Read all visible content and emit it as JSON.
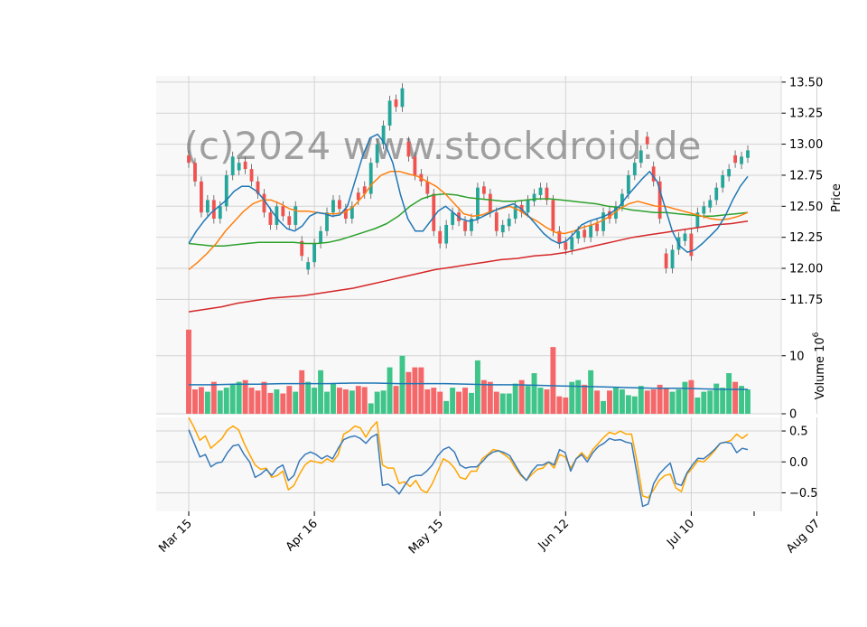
{
  "watermark": "(c)2024 www.stockdroid.de",
  "colors": {
    "panel_bg": "#f8f8f8",
    "grid": "#d3d3d3",
    "up": "#26a69a",
    "up_vol": "#3fc58a",
    "down": "#ef5350",
    "down_vol": "#f5686a",
    "ma_fast": "#1f77b4",
    "ma_mid": "#ff7f0e",
    "ma_slow": "#2ca02c",
    "ma_long": "#d62728",
    "osc_blue": "#3a7ab8",
    "osc_orange": "#ffa500"
  },
  "chart_data": [
    {
      "type": "candlestick",
      "panel": "price",
      "ylabel": "Price",
      "ylim": [
        11.6,
        13.55
      ],
      "yticks": [
        11.75,
        12.0,
        12.25,
        12.5,
        12.75,
        13.0,
        13.25,
        13.5
      ],
      "xticks": [
        {
          "label": "Mar 15",
          "index": 0
        },
        {
          "label": "Apr 16",
          "index": 20
        },
        {
          "label": "May 15",
          "index": 40
        },
        {
          "label": "Jun 12",
          "index": 60
        },
        {
          "label": "Jul 10",
          "index": 80
        },
        {
          "label": "Aug 07",
          "index": 100
        }
      ],
      "close": [
        12.85,
        12.7,
        12.45,
        12.55,
        12.4,
        12.5,
        12.75,
        12.9,
        12.85,
        12.8,
        12.7,
        12.6,
        12.45,
        12.35,
        12.5,
        12.42,
        12.35,
        12.5,
        12.1,
        12.05,
        12.2,
        12.3,
        12.45,
        12.55,
        12.48,
        12.4,
        12.5,
        12.55,
        12.6,
        12.85,
        13.0,
        13.15,
        13.35,
        13.3,
        13.45,
        12.9,
        12.75,
        12.7,
        12.6,
        12.3,
        12.2,
        12.35,
        12.45,
        12.38,
        12.3,
        12.4,
        12.65,
        12.6,
        12.45,
        12.3,
        12.35,
        12.4,
        12.5,
        12.45,
        12.55,
        12.6,
        12.65,
        12.55,
        12.3,
        12.2,
        12.15,
        12.25,
        12.3,
        12.25,
        12.35,
        12.3,
        12.45,
        12.4,
        12.5,
        12.6,
        12.75,
        12.85,
        12.95,
        13.0,
        12.7,
        12.4,
        12.0,
        12.15,
        12.25,
        12.28,
        12.1,
        12.45,
        12.5,
        12.55,
        12.65,
        12.75,
        12.8,
        12.85,
        12.9,
        12.95
      ],
      "volume_m": [
        14.5,
        4.2,
        4.6,
        3.8,
        5.5,
        4.0,
        4.5,
        5.0,
        5.5,
        5.8,
        4.5,
        4.0,
        5.5,
        3.6,
        4.2,
        3.5,
        4.8,
        3.8,
        7.5,
        5.5,
        4.5,
        7.5,
        3.8,
        5.2,
        4.5,
        4.2,
        4.0,
        4.8,
        4.6,
        1.8,
        3.8,
        4.0,
        8.0,
        4.8,
        10.0,
        7.2,
        8.0,
        8.0,
        4.2,
        4.5,
        3.8,
        2.2,
        4.5,
        3.8,
        4.5,
        3.6,
        9.2,
        5.8,
        5.5,
        3.8,
        3.5,
        3.5,
        5.2,
        5.8,
        4.8,
        7.0,
        4.5,
        4.2,
        11.5,
        3.0,
        2.8,
        5.5,
        5.8,
        5.0,
        7.5,
        4.0,
        2.2,
        4.0,
        4.5,
        4.2,
        3.2,
        3.0,
        4.8,
        4.0,
        4.2,
        5.0,
        4.5,
        3.8,
        4.2,
        5.5,
        5.8,
        2.8,
        3.8,
        4.0,
        5.2,
        4.5,
        7.0,
        5.5,
        4.8,
        4.2
      ],
      "direction": [
        -1,
        -1,
        -1,
        1,
        -1,
        1,
        1,
        1,
        1,
        -1,
        -1,
        -1,
        -1,
        -1,
        1,
        -1,
        -1,
        1,
        -1,
        1,
        1,
        1,
        1,
        1,
        -1,
        -1,
        1,
        -1,
        -1,
        1,
        1,
        1,
        1,
        -1,
        1,
        -1,
        -1,
        -1,
        -1,
        -1,
        -1,
        1,
        1,
        -1,
        -1,
        1,
        1,
        -1,
        -1,
        -1,
        1,
        1,
        1,
        -1,
        1,
        1,
        1,
        -1,
        -1,
        -1,
        -1,
        1,
        1,
        -1,
        1,
        -1,
        1,
        -1,
        1,
        1,
        1,
        1,
        1,
        -1,
        -1,
        -1,
        -1,
        1,
        1,
        1,
        -1,
        1,
        1,
        1,
        1,
        1,
        1,
        -1,
        1,
        1
      ],
      "sma_fast": [
        12.2,
        12.3,
        12.38,
        12.45,
        12.5,
        12.55,
        12.62,
        12.66,
        12.66,
        12.62,
        12.55,
        12.46,
        12.38,
        12.32,
        12.3,
        12.34,
        12.42,
        12.45,
        12.44,
        12.42,
        12.43,
        12.5,
        12.7,
        12.9,
        13.05,
        13.08,
        13.0,
        12.85,
        12.6,
        12.4,
        12.3,
        12.3,
        12.38,
        12.46,
        12.5,
        12.45,
        12.4,
        12.38,
        12.39,
        12.42,
        12.45,
        12.48,
        12.5,
        12.52,
        12.48,
        12.42,
        12.35,
        12.28,
        12.23,
        12.2,
        12.22,
        12.28,
        12.35,
        12.38,
        12.4,
        12.42,
        12.45,
        12.5,
        12.58,
        12.65,
        12.72,
        12.78,
        12.7,
        12.5,
        12.3,
        12.18,
        12.13,
        12.15,
        12.2,
        12.26,
        12.32,
        12.42,
        12.55,
        12.66,
        12.74
      ],
      "sma_mid": [
        11.99,
        12.05,
        12.12,
        12.2,
        12.3,
        12.38,
        12.46,
        12.52,
        12.55,
        12.55,
        12.52,
        12.48,
        12.46,
        12.46,
        12.45,
        12.44,
        12.44,
        12.45,
        12.5,
        12.58,
        12.68,
        12.75,
        12.78,
        12.78,
        12.76,
        12.74,
        12.7,
        12.66,
        12.6,
        12.52,
        12.44,
        12.42,
        12.43,
        12.46,
        12.48,
        12.5,
        12.47,
        12.42,
        12.38,
        12.33,
        12.29,
        12.28,
        12.3,
        12.33,
        12.35,
        12.38,
        12.42,
        12.48,
        12.52,
        12.54,
        12.52,
        12.5,
        12.5,
        12.48,
        12.46,
        12.44,
        12.42,
        12.4,
        12.39,
        12.4,
        12.42,
        12.45
      ],
      "sma_slow": [
        12.2,
        12.19,
        12.18,
        12.18,
        12.19,
        12.2,
        12.21,
        12.21,
        12.21,
        12.21,
        12.2,
        12.2,
        12.21,
        12.23,
        12.26,
        12.29,
        12.32,
        12.36,
        12.42,
        12.5,
        12.56,
        12.59,
        12.6,
        12.59,
        12.57,
        12.56,
        12.55,
        12.54,
        12.54,
        12.55,
        12.56,
        12.56,
        12.55,
        12.54,
        12.53,
        12.52,
        12.5,
        12.49,
        12.47,
        12.46,
        12.45,
        12.45,
        12.44,
        12.43,
        12.42,
        12.42,
        12.43,
        12.44,
        12.45
      ],
      "sma_long": [
        11.65,
        11.67,
        11.69,
        11.72,
        11.74,
        11.76,
        11.77,
        11.78,
        11.8,
        11.82,
        11.84,
        11.87,
        11.9,
        11.93,
        11.96,
        11.99,
        12.01,
        12.03,
        12.05,
        12.07,
        12.08,
        12.1,
        12.11,
        12.13,
        12.16,
        12.19,
        12.22,
        12.25,
        12.27,
        12.29,
        12.31,
        12.33,
        12.35,
        12.36,
        12.38
      ]
    },
    {
      "type": "bar",
      "panel": "volume",
      "ylabel": "Volume  10^6",
      "ylim": [
        0,
        16.5
      ],
      "yticks": [
        0,
        10
      ],
      "avg_volume_m": [
        5.0,
        5.0,
        5.1,
        5.1,
        5.2,
        5.2,
        5.2,
        5.3,
        5.3,
        5.2,
        5.2,
        5.2,
        5.1,
        5.0,
        5.0,
        4.9,
        4.8,
        4.7,
        4.6,
        4.5,
        4.4,
        4.4,
        4.3,
        4.2,
        4.2
      ]
    },
    {
      "type": "line",
      "panel": "oscillator",
      "ylim": [
        -0.8,
        0.72
      ],
      "yticks": [
        -0.5,
        0.0,
        0.5
      ],
      "series": [
        {
          "values": [
            0.52,
            0.3,
            0.08,
            0.12,
            -0.08,
            -0.02,
            0.0,
            0.15,
            0.26,
            0.28,
            0.12,
            0.0,
            -0.25,
            -0.2,
            -0.12,
            -0.22,
            -0.1,
            -0.05,
            -0.3,
            -0.22,
            0.02,
            0.12,
            0.16,
            0.12,
            0.05,
            0.1,
            0.05,
            0.22,
            0.36,
            0.4,
            0.42,
            0.38,
            0.3,
            0.4,
            0.45,
            -0.38,
            -0.36,
            -0.42,
            -0.52,
            -0.38,
            -0.25,
            -0.22,
            -0.22,
            -0.15,
            -0.05,
            0.1,
            0.2,
            0.24,
            0.16,
            -0.05,
            -0.1,
            -0.08,
            -0.08,
            0.0,
            0.1,
            0.16,
            0.18,
            0.15,
            0.1,
            -0.05,
            -0.2,
            -0.3,
            -0.15,
            -0.05,
            -0.05,
            0.0,
            -0.05,
            0.2,
            0.15,
            -0.15,
            0.05,
            0.12,
            0.0,
            0.15,
            0.25,
            0.3,
            0.38,
            0.35,
            0.36,
            0.32,
            0.3,
            -0.2,
            -0.72,
            -0.68,
            -0.35,
            -0.2,
            -0.1,
            -0.02,
            -0.35,
            -0.38,
            -0.18,
            -0.05,
            0.06,
            0.05,
            0.12,
            0.2,
            0.3,
            0.32,
            0.3,
            0.15,
            0.22,
            0.2
          ]
        },
        {
          "values": [
            0.72,
            0.55,
            0.35,
            0.42,
            0.22,
            0.3,
            0.38,
            0.52,
            0.58,
            0.52,
            0.3,
            0.12,
            -0.05,
            -0.12,
            -0.1,
            -0.25,
            -0.22,
            -0.15,
            -0.45,
            -0.38,
            -0.2,
            -0.05,
            0.02,
            0.0,
            -0.02,
            0.05,
            0.0,
            0.12,
            0.45,
            0.5,
            0.58,
            0.55,
            0.4,
            0.55,
            0.65,
            -0.05,
            -0.1,
            -0.1,
            -0.35,
            -0.32,
            -0.4,
            -0.3,
            -0.45,
            -0.5,
            -0.35,
            -0.15,
            0.05,
            0.0,
            -0.1,
            -0.25,
            -0.28,
            -0.15,
            -0.15,
            0.05,
            0.12,
            0.2,
            0.18,
            0.12,
            0.05,
            -0.1,
            -0.22,
            -0.3,
            -0.2,
            -0.12,
            -0.1,
            0.0,
            -0.1,
            0.12,
            0.08,
            -0.1,
            0.05,
            0.15,
            0.05,
            0.2,
            0.3,
            0.4,
            0.48,
            0.45,
            0.5,
            0.45,
            0.45,
            0.0,
            -0.55,
            -0.58,
            -0.45,
            -0.3,
            -0.22,
            -0.2,
            -0.42,
            -0.48,
            -0.2,
            -0.1,
            0.02,
            0.0,
            0.08,
            0.18,
            0.3,
            0.32,
            0.35,
            0.45,
            0.38,
            0.45
          ]
        }
      ]
    }
  ]
}
